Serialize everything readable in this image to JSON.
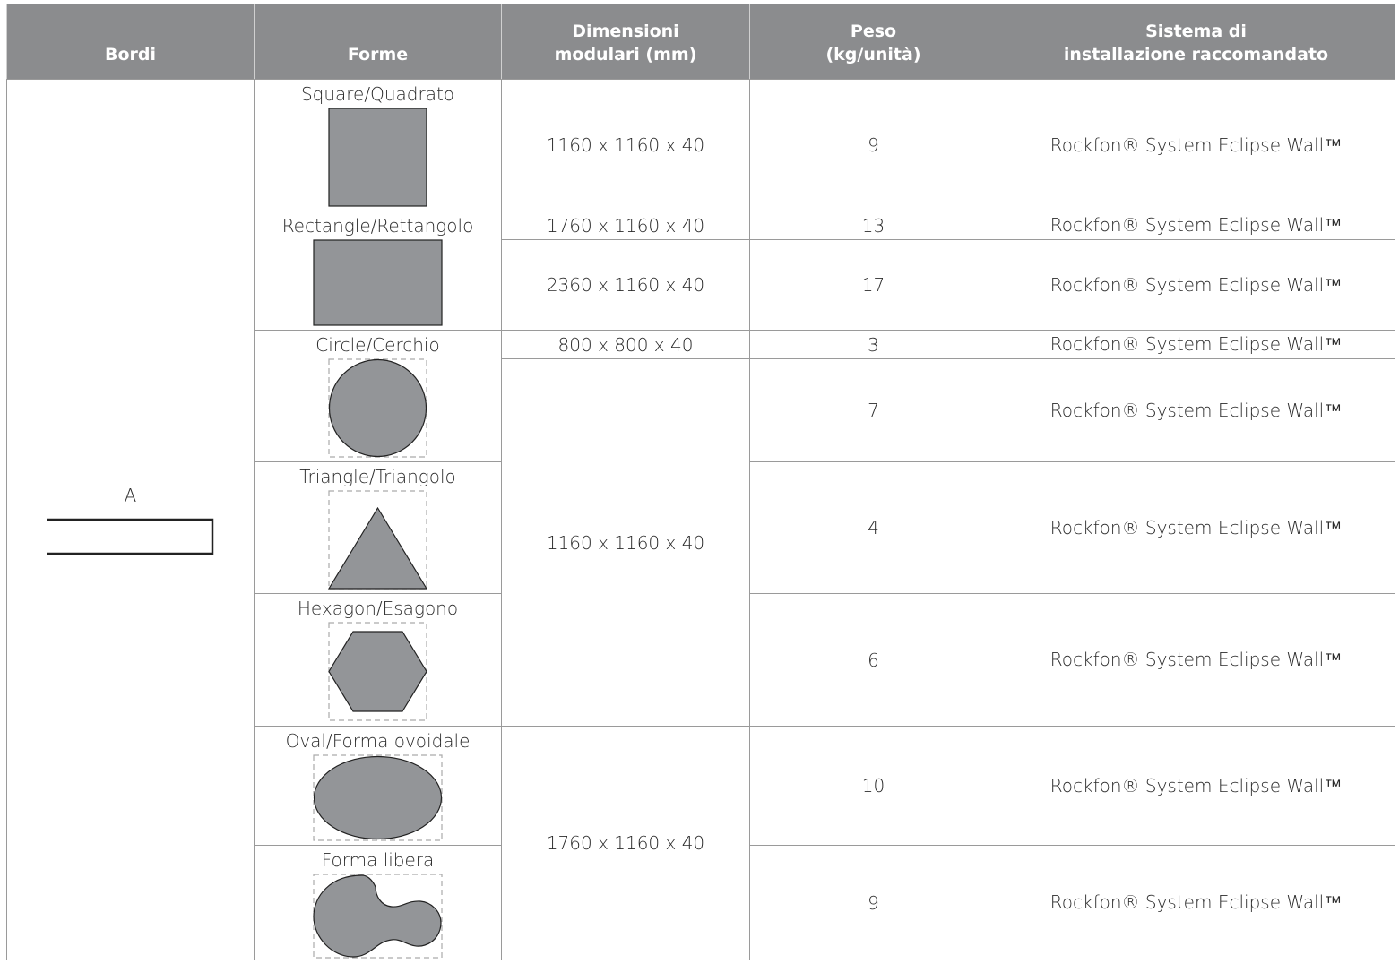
{
  "header": {
    "bordi": "Bordi",
    "forme": "Forme",
    "dimensioni": "Dimensioni\nmodulari (mm)",
    "peso": "Peso\n(kg/unità)",
    "sistema": "Sistema di\ninstallazione raccomandato"
  },
  "edge": {
    "label": "A"
  },
  "shapes": {
    "square": "Square/Quadrato",
    "rectangle": "Rectangle/Rettangolo",
    "circle": "Circle/Cerchio",
    "triangle": "Triangle/Triangolo",
    "hexagon": "Hexagon/Esagono",
    "oval": "Oval/Forma ovoidale",
    "free": "Forma libera"
  },
  "dims": {
    "square": "1160 x 1160 x 40",
    "rect1": "1760 x 1160 x 40",
    "rect2": "2360 x 1160 x 40",
    "circle_small": "800 x 800 x 40",
    "group_1160": "1160 x 1160 x 40",
    "group_1760": "1760 x 1160 x 40"
  },
  "weights": {
    "square": "9",
    "rect1": "13",
    "rect2": "17",
    "circle_small": "3",
    "circle": "7",
    "triangle": "4",
    "hexagon": "6",
    "oval": "10",
    "free": "9"
  },
  "system": "Rockfon® System Eclipse Wall™",
  "colors": {
    "header_bg": "#8b8c8e",
    "shape_fill": "#939598"
  }
}
